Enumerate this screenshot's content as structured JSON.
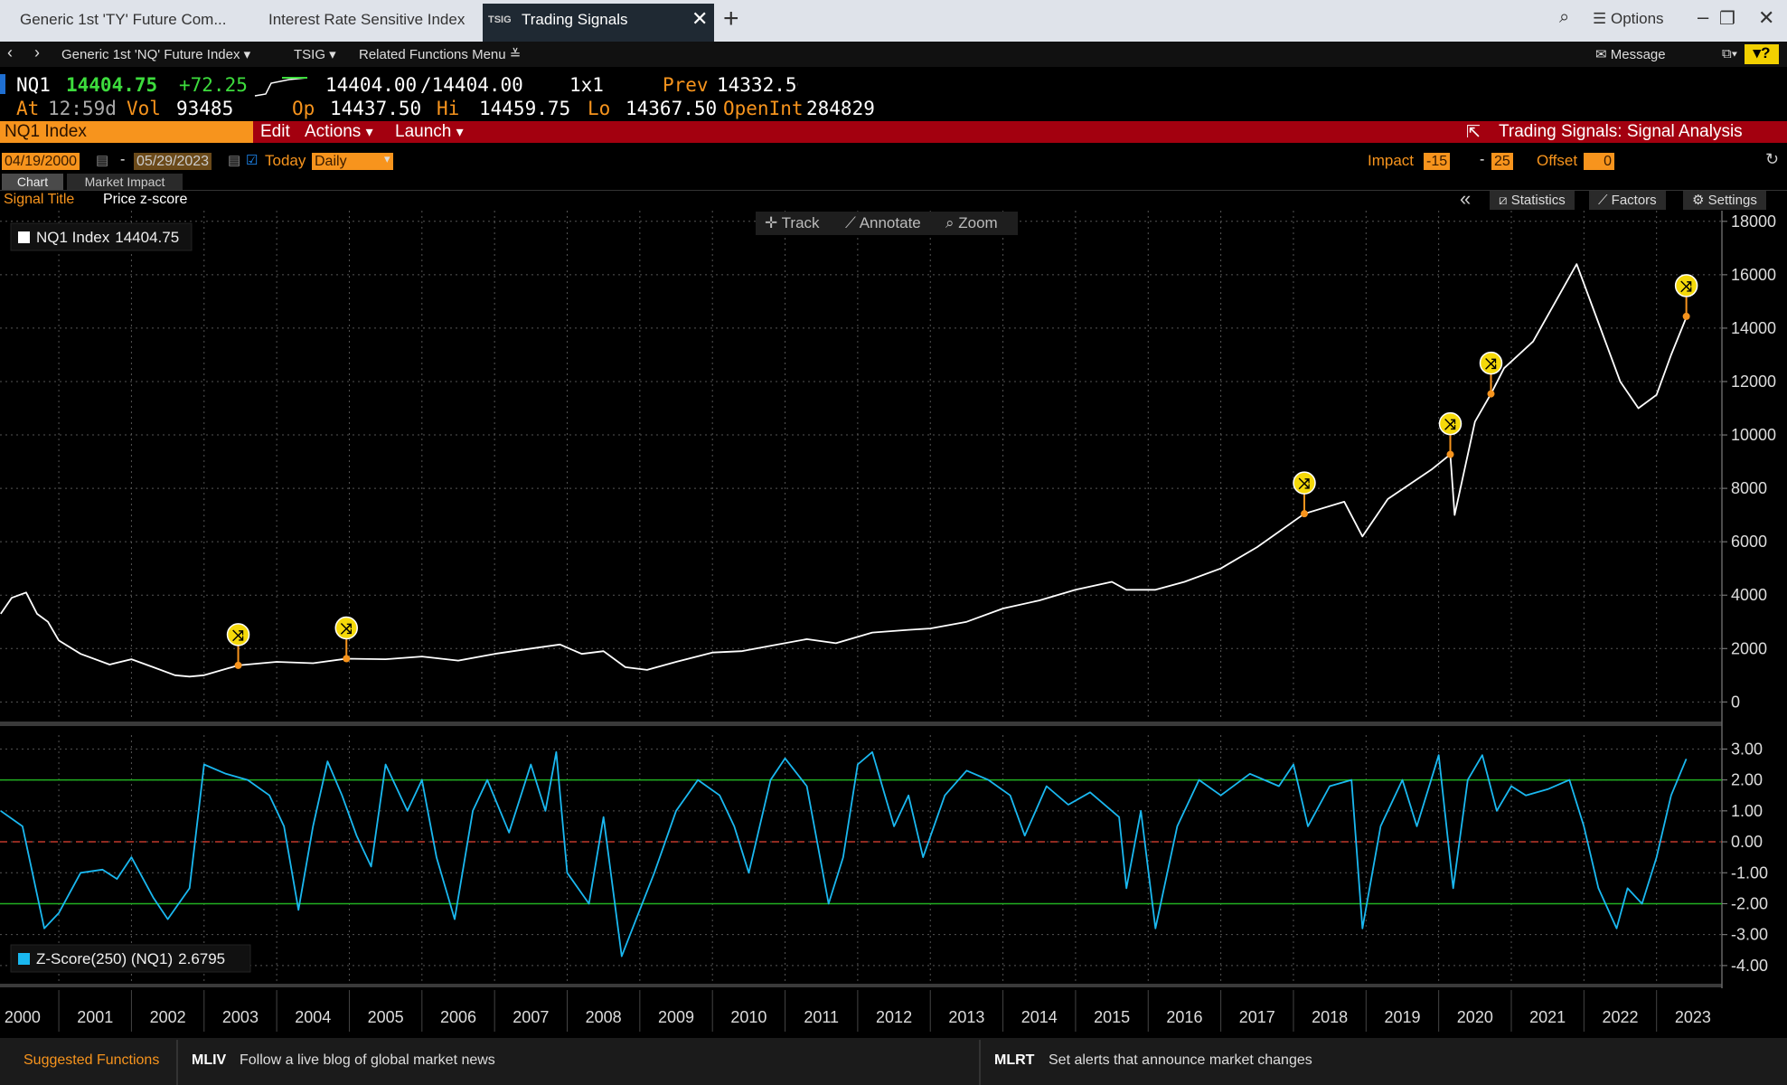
{
  "tabs": [
    {
      "label": "Generic 1st 'TY' Future Com..."
    },
    {
      "label": "Interest Rate Sensitive Index"
    },
    {
      "code": "TSIG",
      "label": "Trading Signals"
    }
  ],
  "window_menu": "Options",
  "nav": {
    "security": "Generic 1st 'NQ' Future Index",
    "function": "TSIG",
    "related": "Related Functions Menu",
    "message": "Message"
  },
  "quote": {
    "ticker": "NQ1",
    "last": "14404.75",
    "change": "+72.25",
    "bid": "14404.00",
    "ask": "/14404.00",
    "size": "1x1",
    "prev_label": "Prev",
    "prev": "14332.50",
    "at_label": "At",
    "time": "12:59d",
    "vol_label": "Vol",
    "vol": "93485",
    "op_label": "Op",
    "op": "14437.50",
    "hi_label": "Hi",
    "hi": "14459.75",
    "lo_label": "Lo",
    "lo": "14367.50",
    "oi_label": "OpenInt",
    "oi": "284829"
  },
  "command_bar": {
    "security": "NQ1 Index",
    "edit": "Edit",
    "actions": "Actions",
    "launch": "Launch",
    "title": "Trading Signals: Signal Analysis"
  },
  "date_bar": {
    "start": "04/19/2000",
    "dash": "-",
    "end": "05/29/2023",
    "today": "Today",
    "period": "Daily",
    "impact_label": "Impact",
    "impact_from": "-15",
    "impact_dash": "-",
    "impact_to": "25",
    "offset_label": "Offset",
    "offset": "0"
  },
  "sub_tabs": [
    "Chart",
    "Market Impact"
  ],
  "signal": {
    "label": "Signal Title",
    "value": "Price z-score"
  },
  "chart_tools": [
    "Track",
    "Annotate",
    "Zoom"
  ],
  "panel_buttons": [
    "Statistics",
    "Factors",
    "Settings"
  ],
  "chart_data": [
    {
      "type": "line",
      "x": [
        2000.2,
        2000.35,
        2000.55,
        2000.7,
        2000.85,
        2001.0,
        2001.3,
        2001.7,
        2002.0,
        2002.3,
        2002.6,
        2002.8,
        2003.0,
        2003.47,
        2004.0,
        2004.5,
        2004.96,
        2005.5,
        2006.0,
        2006.5,
        2007.0,
        2007.5,
        2007.9,
        2008.2,
        2008.5,
        2008.8,
        2009.1,
        2009.5,
        2010.0,
        2010.4,
        2010.8,
        2011.3,
        2011.7,
        2012.2,
        2012.7,
        2013.0,
        2013.5,
        2014.0,
        2014.5,
        2015.0,
        2015.5,
        2015.7,
        2016.1,
        2016.5,
        2017.0,
        2017.5,
        2018.15,
        2018.7,
        2018.95,
        2019.3,
        2019.9,
        2020.16,
        2020.22,
        2020.5,
        2020.72,
        2020.9,
        2021.3,
        2021.9,
        2022.2,
        2022.5,
        2022.75,
        2023.0,
        2023.2,
        2023.41
      ],
      "series": [
        {
          "name": "NQ1 Index",
          "color": "#ffffff",
          "last_value": 14404.75,
          "values": [
            3300,
            3900,
            4100,
            3300,
            3000,
            2300,
            1800,
            1400,
            1600,
            1300,
            1000,
            950,
            1000,
            1370,
            1500,
            1450,
            1620,
            1600,
            1700,
            1550,
            1800,
            2000,
            2150,
            1800,
            1900,
            1300,
            1200,
            1500,
            1850,
            1900,
            2100,
            2350,
            2200,
            2600,
            2700,
            2750,
            3000,
            3500,
            3800,
            4200,
            4500,
            4200,
            4200,
            4500,
            5000,
            5800,
            7050,
            7500,
            6200,
            7600,
            8700,
            9270,
            7000,
            10500,
            11540,
            12500,
            13500,
            16400,
            14200,
            12000,
            11000,
            11500,
            13000,
            14404.75
          ]
        }
      ],
      "signals": {
        "x": [
          2003.47,
          2004.96,
          2018.15,
          2020.16,
          2020.72,
          2023.41
        ],
        "values": [
          1370,
          1620,
          7050,
          9270,
          11540,
          14440
        ]
      },
      "xlim": [
        2000.19,
        2023.9
      ],
      "xticks": [
        2000,
        2001,
        2002,
        2003,
        2004,
        2005,
        2006,
        2007,
        2008,
        2009,
        2010,
        2011,
        2012,
        2013,
        2014,
        2015,
        2016,
        2017,
        2018,
        2019,
        2020,
        2021,
        2022,
        2023
      ],
      "ylim": [
        -700,
        18400
      ],
      "yticks": [
        0,
        2000,
        4000,
        6000,
        8000,
        10000,
        12000,
        14000,
        16000,
        18000
      ],
      "grid": true,
      "legend": "upper left"
    },
    {
      "type": "line",
      "x": [
        2000.2,
        2000.5,
        2000.8,
        2001.0,
        2001.3,
        2001.6,
        2001.8,
        2002.0,
        2002.3,
        2002.5,
        2002.8,
        2003.0,
        2003.3,
        2003.6,
        2003.9,
        2004.1,
        2004.3,
        2004.5,
        2004.7,
        2004.9,
        2005.1,
        2005.3,
        2005.5,
        2005.8,
        2006.0,
        2006.2,
        2006.45,
        2006.7,
        2006.9,
        2007.2,
        2007.5,
        2007.7,
        2007.85,
        2008.0,
        2008.3,
        2008.5,
        2008.75,
        2008.95,
        2009.2,
        2009.5,
        2009.8,
        2010.1,
        2010.3,
        2010.5,
        2010.8,
        2011.0,
        2011.3,
        2011.6,
        2011.8,
        2012.0,
        2012.2,
        2012.5,
        2012.7,
        2012.9,
        2013.2,
        2013.5,
        2013.8,
        2014.1,
        2014.3,
        2014.6,
        2014.9,
        2015.2,
        2015.6,
        2015.7,
        2015.9,
        2016.1,
        2016.4,
        2016.7,
        2017.0,
        2017.4,
        2017.8,
        2018.0,
        2018.2,
        2018.5,
        2018.8,
        2018.95,
        2019.2,
        2019.5,
        2019.7,
        2020.0,
        2020.2,
        2020.4,
        2020.6,
        2020.8,
        2021.0,
        2021.2,
        2021.5,
        2021.8,
        2022.0,
        2022.2,
        2022.45,
        2022.6,
        2022.8,
        2023.0,
        2023.2,
        2023.41
      ],
      "series": [
        {
          "name": "Z-Score(250) (NQ1)",
          "color": "#1ab8f0",
          "last_value": 2.6795,
          "values": [
            1.0,
            0.5,
            -2.8,
            -2.3,
            -1.0,
            -0.9,
            -1.2,
            -0.5,
            -1.8,
            -2.5,
            -1.5,
            2.5,
            2.2,
            2.0,
            1.5,
            0.5,
            -2.2,
            0.5,
            2.6,
            1.5,
            0.2,
            -0.8,
            2.5,
            1.0,
            2.0,
            -0.5,
            -2.5,
            1.0,
            2.0,
            0.3,
            2.5,
            1.0,
            2.9,
            -1.0,
            -2.0,
            0.8,
            -3.7,
            -2.5,
            -1.0,
            1.0,
            2.0,
            1.5,
            0.5,
            -1.0,
            2.0,
            2.7,
            1.8,
            -2.0,
            -0.5,
            2.5,
            2.9,
            0.5,
            1.5,
            -0.5,
            1.5,
            2.3,
            2.0,
            1.5,
            0.2,
            1.8,
            1.2,
            1.6,
            0.8,
            -1.5,
            1.0,
            -2.8,
            0.5,
            2.0,
            1.5,
            2.2,
            1.8,
            2.5,
            0.5,
            1.8,
            2.0,
            -2.8,
            0.5,
            2.0,
            0.5,
            2.8,
            -1.5,
            2.0,
            2.8,
            1.0,
            1.8,
            1.5,
            1.7,
            2.0,
            0.5,
            -1.5,
            -2.8,
            -1.5,
            -2.0,
            -0.5,
            1.5,
            2.68
          ]
        }
      ],
      "reference_lines": [
        {
          "value": 2,
          "color": "#22b022"
        },
        {
          "value": 0,
          "color": "#c0392b",
          "dashed": true
        },
        {
          "value": -2,
          "color": "#22b022"
        }
      ],
      "xlim": [
        2000.19,
        2023.9
      ],
      "xticks": [
        2000,
        2001,
        2002,
        2003,
        2004,
        2005,
        2006,
        2007,
        2008,
        2009,
        2010,
        2011,
        2012,
        2013,
        2014,
        2015,
        2016,
        2017,
        2018,
        2019,
        2020,
        2021,
        2022,
        2023
      ],
      "ylim": [
        -4.5,
        3.45
      ],
      "yticks": [
        {
          "value": -4,
          "label": "-4.00"
        },
        {
          "value": -3,
          "label": "-3.00"
        },
        {
          "value": -2,
          "label": "-2.00"
        },
        {
          "value": -1,
          "label": "-1.00"
        },
        {
          "value": 0,
          "label": "0.00"
        },
        {
          "value": 1,
          "label": "1.00"
        },
        {
          "value": 2,
          "label": "2.00"
        },
        {
          "value": 3,
          "label": "3.00"
        }
      ],
      "grid": true,
      "legend": "lower left"
    }
  ],
  "footer": {
    "suggested": "Suggested Functions",
    "items": [
      {
        "code": "MLIV",
        "text": "Follow a live blog of global market news"
      },
      {
        "code": "MLRT",
        "text": "Set alerts that announce market changes"
      }
    ]
  }
}
